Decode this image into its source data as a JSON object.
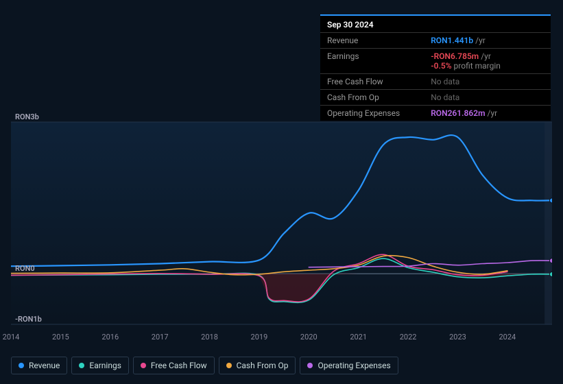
{
  "tooltip": {
    "date": "Sep 30 2024",
    "rows": [
      {
        "label": "Revenue",
        "value": "RON1.441b",
        "unit": "/yr",
        "cls": "val-rev"
      },
      {
        "label": "Earnings",
        "value": "-RON6.785m",
        "unit": "/yr",
        "cls": "val-earn",
        "extra": {
          "value": "-0.5%",
          "label": "profit margin",
          "cls": "val-margin"
        }
      },
      {
        "label": "Free Cash Flow",
        "nodata": "No data"
      },
      {
        "label": "Cash From Op",
        "nodata": "No data"
      },
      {
        "label": "Operating Expenses",
        "value": "RON261.862m",
        "unit": "/yr",
        "cls": "val-opex"
      }
    ]
  },
  "chart": {
    "type": "line",
    "background_gradient": [
      "#0e2238",
      "#0a1420"
    ],
    "ylim": [
      -1000,
      3000
    ],
    "yticks": [
      {
        "v": 3000,
        "label": "RON3b"
      },
      {
        "v": 0,
        "label": "RON0"
      },
      {
        "v": -1000,
        "label": "-RON1b"
      }
    ],
    "xlim": [
      2014,
      2024.9
    ],
    "xticks": [
      2014,
      2015,
      2016,
      2017,
      2018,
      2019,
      2020,
      2021,
      2022,
      2023,
      2024
    ],
    "grid_color": "#23344a",
    "zero_line_color": "#4a5a6d",
    "projection_start": 2024.75,
    "projection_fill": "#1a2a3d",
    "series": [
      {
        "key": "revenue",
        "label": "Revenue",
        "color": "#2996ff",
        "width": 2.2,
        "pts": [
          [
            2014,
            150
          ],
          [
            2015,
            160
          ],
          [
            2016,
            175
          ],
          [
            2017,
            200
          ],
          [
            2018,
            240
          ],
          [
            2019,
            270
          ],
          [
            2019.5,
            800
          ],
          [
            2020,
            1200
          ],
          [
            2020.5,
            1100
          ],
          [
            2021,
            1650
          ],
          [
            2021.5,
            2550
          ],
          [
            2022,
            2700
          ],
          [
            2022.5,
            2650
          ],
          [
            2023,
            2700
          ],
          [
            2023.5,
            1950
          ],
          [
            2024,
            1500
          ],
          [
            2024.5,
            1450
          ],
          [
            2024.9,
            1450
          ]
        ],
        "endcap": true
      },
      {
        "key": "earnings",
        "label": "Earnings",
        "color": "#2ed2c0",
        "width": 1.6,
        "pts": [
          [
            2014,
            -30
          ],
          [
            2015,
            -25
          ],
          [
            2016,
            -20
          ],
          [
            2017,
            -10
          ],
          [
            2018,
            -10
          ],
          [
            2019,
            -30
          ],
          [
            2019.2,
            -500
          ],
          [
            2019.5,
            -550
          ],
          [
            2020,
            -520
          ],
          [
            2020.5,
            -20
          ],
          [
            2021,
            120
          ],
          [
            2021.5,
            300
          ],
          [
            2022,
            120
          ],
          [
            2022.5,
            30
          ],
          [
            2023,
            -60
          ],
          [
            2023.5,
            -80
          ],
          [
            2024,
            -40
          ],
          [
            2024.5,
            -10
          ],
          [
            2024.9,
            -10
          ]
        ],
        "fill_neg": "#5a1820",
        "endcap": true
      },
      {
        "key": "fcf",
        "label": "Free Cash Flow",
        "color": "#e84890",
        "width": 1.6,
        "pts": [
          [
            2014,
            -30
          ],
          [
            2015,
            -20
          ],
          [
            2016,
            -5
          ],
          [
            2017,
            5
          ],
          [
            2018,
            -10
          ],
          [
            2019,
            -40
          ],
          [
            2019.2,
            -480
          ],
          [
            2019.5,
            -530
          ],
          [
            2020,
            -500
          ],
          [
            2020.5,
            50
          ],
          [
            2021,
            200
          ],
          [
            2021.5,
            380
          ],
          [
            2022,
            150
          ],
          [
            2022.5,
            80
          ],
          [
            2023,
            -20
          ],
          [
            2023.5,
            -30
          ],
          [
            2024,
            40
          ]
        ]
      },
      {
        "key": "cfo",
        "label": "Cash From Op",
        "color": "#f0a840",
        "width": 1.6,
        "pts": [
          [
            2014,
            10
          ],
          [
            2015,
            15
          ],
          [
            2016,
            20
          ],
          [
            2017,
            70
          ],
          [
            2017.5,
            100
          ],
          [
            2018,
            30
          ],
          [
            2018.5,
            -20
          ],
          [
            2019,
            -10
          ],
          [
            2019.5,
            40
          ],
          [
            2020,
            70
          ],
          [
            2020.5,
            100
          ],
          [
            2021,
            170
          ],
          [
            2021.5,
            350
          ],
          [
            2022,
            320
          ],
          [
            2022.5,
            150
          ],
          [
            2023,
            30
          ],
          [
            2023.5,
            -10
          ],
          [
            2024,
            60
          ]
        ]
      },
      {
        "key": "opex",
        "label": "Operating Expenses",
        "color": "#b969e8",
        "width": 1.6,
        "pts": [
          [
            2020,
            130
          ],
          [
            2020.5,
            135
          ],
          [
            2021,
            140
          ],
          [
            2021.5,
            145
          ],
          [
            2022,
            150
          ],
          [
            2022.5,
            200
          ],
          [
            2023,
            170
          ],
          [
            2023.5,
            200
          ],
          [
            2024,
            220
          ],
          [
            2024.5,
            260
          ],
          [
            2024.9,
            260
          ]
        ],
        "endcap": true
      }
    ]
  },
  "legend": [
    {
      "label": "Revenue",
      "color": "#2996ff",
      "key": "revenue"
    },
    {
      "label": "Earnings",
      "color": "#2ed2c0",
      "key": "earnings"
    },
    {
      "label": "Free Cash Flow",
      "color": "#e84890",
      "key": "fcf"
    },
    {
      "label": "Cash From Op",
      "color": "#f0a840",
      "key": "cfo"
    },
    {
      "label": "Operating Expenses",
      "color": "#b969e8",
      "key": "opex"
    }
  ]
}
